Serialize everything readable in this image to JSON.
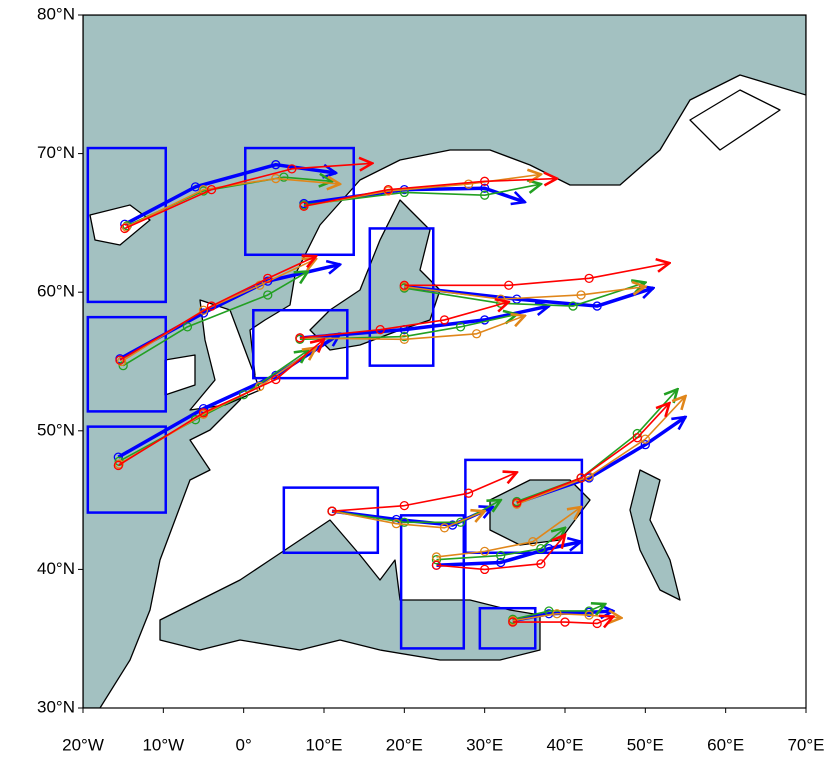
{
  "map": {
    "xlim": [
      -20,
      70
    ],
    "ylim": [
      30,
      80
    ],
    "xticks": [
      {
        "value": -20,
        "label": "20°W"
      },
      {
        "value": -10,
        "label": "10°W"
      },
      {
        "value": 0,
        "label": "0°"
      },
      {
        "value": 10,
        "label": "10°E"
      },
      {
        "value": 20,
        "label": "20°E"
      },
      {
        "value": 30,
        "label": "30°E"
      },
      {
        "value": 40,
        "label": "40°E"
      },
      {
        "value": 50,
        "label": "50°E"
      },
      {
        "value": 60,
        "label": "60°E"
      },
      {
        "value": 70,
        "label": "70°E"
      }
    ],
    "yticks": [
      {
        "value": 30,
        "label": "30°N"
      },
      {
        "value": 40,
        "label": "40°N"
      },
      {
        "value": 50,
        "label": "50°N"
      },
      {
        "value": 60,
        "label": "60°N"
      },
      {
        "value": 70,
        "label": "70°N"
      },
      {
        "value": 80,
        "label": "80°N"
      }
    ],
    "sea_color": "#a3c1c1",
    "land_color": "#ffffff",
    "boxes": {
      "color": "#0000ff",
      "items": [
        [
          -19.4,
          70.4,
          -9.7,
          59.3
        ],
        [
          -19.4,
          58.2,
          -9.7,
          51.4
        ],
        [
          -19.4,
          50.3,
          -9.7,
          44.1
        ],
        [
          0.2,
          70.4,
          13.7,
          62.7
        ],
        [
          1.2,
          58.7,
          12.9,
          53.8
        ],
        [
          15.7,
          64.6,
          23.6,
          54.7
        ],
        [
          5.0,
          45.9,
          16.7,
          41.2
        ],
        [
          19.6,
          43.9,
          27.4,
          34.3
        ],
        [
          27.6,
          47.9,
          42.1,
          41.2
        ],
        [
          29.4,
          37.2,
          36.3,
          34.3
        ]
      ]
    },
    "tracks": [
      {
        "color": "#0000ff",
        "paths": [
          [
            [
              -14.8,
              64.9
            ],
            [
              -6,
              67.6
            ],
            [
              4,
              69.2
            ],
            [
              11.5,
              68.6
            ]
          ],
          [
            [
              7.5,
              66.4
            ],
            [
              20,
              67.4
            ],
            [
              30,
              67.5
            ],
            [
              35,
              66.5
            ]
          ],
          [
            [
              -15.4,
              55.2
            ],
            [
              -5,
              58.5
            ],
            [
              3,
              60.8
            ],
            [
              12,
              62
            ]
          ],
          [
            [
              -15.6,
              48.1
            ],
            [
              -5,
              51.6
            ],
            [
              4,
              54
            ],
            [
              12,
              57
            ]
          ],
          [
            [
              7,
              56.7
            ],
            [
              20,
              57.3
            ],
            [
              30,
              58
            ],
            [
              38,
              59
            ]
          ],
          [
            [
              20,
              60.4
            ],
            [
              34,
              59.5
            ],
            [
              44,
              59
            ],
            [
              51,
              60.3
            ]
          ],
          [
            [
              11,
              44.2
            ],
            [
              19,
              43.6
            ],
            [
              26,
              43.2
            ],
            [
              31,
              44.5
            ]
          ],
          [
            [
              24,
              40.3
            ],
            [
              32,
              40.5
            ],
            [
              38,
              41.5
            ],
            [
              42,
              42
            ]
          ],
          [
            [
              34,
              44.8
            ],
            [
              43,
              46.6
            ],
            [
              50,
              49
            ],
            [
              55,
              51
            ]
          ],
          [
            [
              33.5,
              36.3
            ],
            [
              38,
              36.8
            ],
            [
              43,
              36.9
            ],
            [
              46,
              37
            ]
          ]
        ]
      },
      {
        "color": "#22a022",
        "paths": [
          [
            [
              -14.5,
              64.8
            ],
            [
              -5,
              67.3
            ],
            [
              5,
              68.3
            ],
            [
              11,
              68
            ]
          ],
          [
            [
              7.5,
              66.3
            ],
            [
              20,
              67.2
            ],
            [
              30,
              67
            ],
            [
              37,
              67.8
            ]
          ],
          [
            [
              -15,
              54.7
            ],
            [
              -7,
              57.5
            ],
            [
              3,
              59.8
            ],
            [
              8,
              61.5
            ]
          ],
          [
            [
              -15.5,
              47.8
            ],
            [
              -6,
              50.8
            ],
            [
              0,
              52.6
            ],
            [
              8,
              55.8
            ]
          ],
          [
            [
              7,
              56.6
            ],
            [
              20,
              56.8
            ],
            [
              27,
              57.5
            ],
            [
              34,
              58.4
            ]
          ],
          [
            [
              20,
              60.3
            ],
            [
              32,
              59.2
            ],
            [
              41,
              59
            ],
            [
              50,
              60.7
            ]
          ],
          [
            [
              11,
              44.2
            ],
            [
              20,
              43.4
            ],
            [
              27,
              43.4
            ],
            [
              32,
              45
            ]
          ],
          [
            [
              24,
              40.7
            ],
            [
              32,
              41
            ],
            [
              37,
              41.5
            ],
            [
              40,
              43
            ]
          ],
          [
            [
              34,
              44.9
            ],
            [
              42,
              46.6
            ],
            [
              49,
              49.8
            ],
            [
              54,
              53
            ]
          ],
          [
            [
              33.5,
              36.4
            ],
            [
              38,
              37
            ],
            [
              43,
              37
            ],
            [
              45,
              37.5
            ]
          ]
        ]
      },
      {
        "color": "#e0861a",
        "paths": [
          [
            [
              -14.6,
              64.7
            ],
            [
              -5,
              67.4
            ],
            [
              4,
              68.2
            ],
            [
              12,
              67.8
            ]
          ],
          [
            [
              7.5,
              66.2
            ],
            [
              18,
              67.3
            ],
            [
              28,
              67.8
            ],
            [
              37,
              68.5
            ]
          ],
          [
            [
              -15.2,
              55
            ],
            [
              -5,
              58.7
            ],
            [
              2,
              60.5
            ],
            [
              9,
              62.4
            ]
          ],
          [
            [
              -15.5,
              47.6
            ],
            [
              -5,
              51.2
            ],
            [
              2,
              53.2
            ],
            [
              9,
              56
            ]
          ],
          [
            [
              7,
              56.7
            ],
            [
              20,
              56.6
            ],
            [
              29,
              57
            ],
            [
              35,
              58.3
            ]
          ],
          [
            [
              20,
              60.4
            ],
            [
              32,
              59.5
            ],
            [
              42,
              59.8
            ],
            [
              50,
              60.4
            ]
          ],
          [
            [
              11,
              44.2
            ],
            [
              19,
              43.3
            ],
            [
              25,
              43
            ],
            [
              30,
              44.2
            ]
          ],
          [
            [
              24,
              40.9
            ],
            [
              30,
              41.3
            ],
            [
              36,
              42
            ],
            [
              42,
              44.5
            ]
          ],
          [
            [
              34,
              44.7
            ],
            [
              43,
              46.7
            ],
            [
              50,
              49.4
            ],
            [
              55,
              52.5
            ]
          ],
          [
            [
              33.5,
              36.3
            ],
            [
              39,
              36.8
            ],
            [
              43,
              36.7
            ],
            [
              47,
              36.5
            ]
          ]
        ]
      },
      {
        "color": "#ff0000",
        "paths": [
          [
            [
              -14.8,
              64.6
            ],
            [
              -4,
              67.4
            ],
            [
              6,
              68.9
            ],
            [
              16,
              69.3
            ]
          ],
          [
            [
              7.5,
              66.2
            ],
            [
              18,
              67.4
            ],
            [
              30,
              68
            ],
            [
              39,
              68.2
            ]
          ],
          [
            [
              -15.4,
              55.1
            ],
            [
              -4,
              59
            ],
            [
              3,
              61
            ],
            [
              9,
              62.6
            ]
          ],
          [
            [
              -15.6,
              47.5
            ],
            [
              -5,
              51.3
            ],
            [
              4,
              53.7
            ],
            [
              10,
              56.6
            ]
          ],
          [
            [
              7,
              56.7
            ],
            [
              17,
              57.3
            ],
            [
              25,
              58
            ],
            [
              33,
              59.3
            ]
          ],
          [
            [
              20,
              60.5
            ],
            [
              33,
              60.5
            ],
            [
              43,
              61
            ],
            [
              53,
              62.1
            ]
          ],
          [
            [
              11,
              44.2
            ],
            [
              20,
              44.6
            ],
            [
              28,
              45.5
            ],
            [
              34,
              47
            ]
          ],
          [
            [
              24,
              40.3
            ],
            [
              30,
              40
            ],
            [
              37,
              40.4
            ],
            [
              40,
              42.5
            ]
          ],
          [
            [
              34,
              44.8
            ],
            [
              42,
              46.6
            ],
            [
              49,
              49.5
            ],
            [
              53,
              52
            ]
          ],
          [
            [
              33.5,
              36.2
            ],
            [
              40,
              36.2
            ],
            [
              44,
              36.1
            ],
            [
              46,
              36.6
            ]
          ]
        ]
      }
    ]
  }
}
